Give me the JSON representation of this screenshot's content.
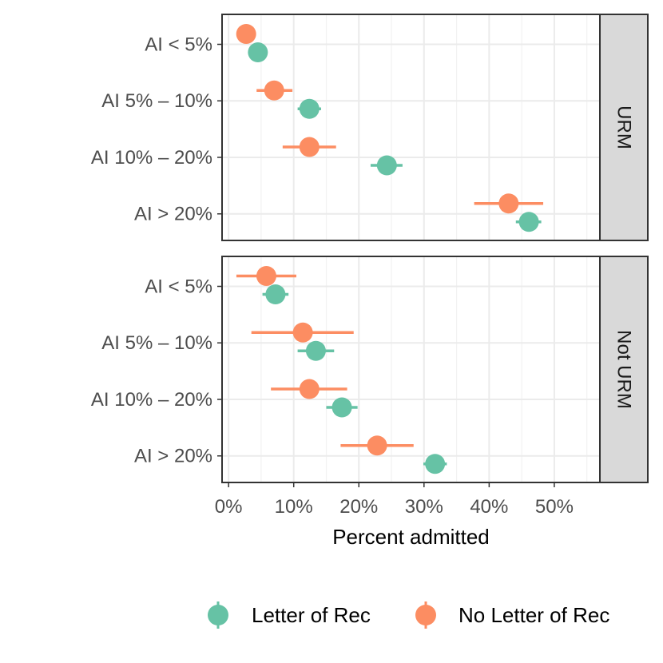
{
  "chart_data": {
    "type": "scatter",
    "subtype": "dot-and-whisker",
    "xlabel": "Percent admitted",
    "x_ticks": [
      "0%",
      "10%",
      "20%",
      "30%",
      "40%",
      "50%"
    ],
    "xlim": [
      -1,
      57
    ],
    "categories": [
      "AI < 5%",
      "AI 5% – 10%",
      "AI 10% – 20%",
      "AI > 20%"
    ],
    "series": [
      {
        "name": "Letter of Rec",
        "color": "#66c2a5"
      },
      {
        "name": "No Letter of Rec",
        "color": "#fc8d62"
      }
    ],
    "legend_position": "bottom",
    "grid": true,
    "panels": [
      {
        "label": "URM",
        "points": [
          {
            "category": "AI < 5%",
            "series": "No Letter of Rec",
            "x": 2.7,
            "low": 2.7,
            "high": 2.7
          },
          {
            "category": "AI < 5%",
            "series": "Letter of Rec",
            "x": 4.5,
            "low": 4.5,
            "high": 4.5
          },
          {
            "category": "AI 5% – 10%",
            "series": "No Letter of Rec",
            "x": 7.0,
            "low": 4.3,
            "high": 9.8
          },
          {
            "category": "AI 5% – 10%",
            "series": "Letter of Rec",
            "x": 12.4,
            "low": 10.6,
            "high": 14.2
          },
          {
            "category": "AI 10% – 20%",
            "series": "No Letter of Rec",
            "x": 12.4,
            "low": 8.3,
            "high": 16.5
          },
          {
            "category": "AI 10% – 20%",
            "series": "Letter of Rec",
            "x": 24.3,
            "low": 21.8,
            "high": 26.7
          },
          {
            "category": "AI > 20%",
            "series": "No Letter of Rec",
            "x": 43.0,
            "low": 37.7,
            "high": 48.3
          },
          {
            "category": "AI > 20%",
            "series": "Letter of Rec",
            "x": 46.1,
            "low": 44.1,
            "high": 48.0
          }
        ]
      },
      {
        "label": "Not URM",
        "points": [
          {
            "category": "AI < 5%",
            "series": "No Letter of Rec",
            "x": 5.8,
            "low": 1.2,
            "high": 10.4
          },
          {
            "category": "AI < 5%",
            "series": "Letter of Rec",
            "x": 7.2,
            "low": 5.2,
            "high": 9.2
          },
          {
            "category": "AI 5% – 10%",
            "series": "No Letter of Rec",
            "x": 11.4,
            "low": 3.5,
            "high": 19.2
          },
          {
            "category": "AI 5% – 10%",
            "series": "Letter of Rec",
            "x": 13.4,
            "low": 10.6,
            "high": 16.2
          },
          {
            "category": "AI 10% – 20%",
            "series": "No Letter of Rec",
            "x": 12.4,
            "low": 6.5,
            "high": 18.2
          },
          {
            "category": "AI 10% – 20%",
            "series": "Letter of Rec",
            "x": 17.4,
            "low": 15.0,
            "high": 19.8
          },
          {
            "category": "AI > 20%",
            "series": "No Letter of Rec",
            "x": 22.8,
            "low": 17.2,
            "high": 28.4
          },
          {
            "category": "AI > 20%",
            "series": "Letter of Rec",
            "x": 31.7,
            "low": 29.9,
            "high": 33.5
          }
        ]
      }
    ]
  }
}
